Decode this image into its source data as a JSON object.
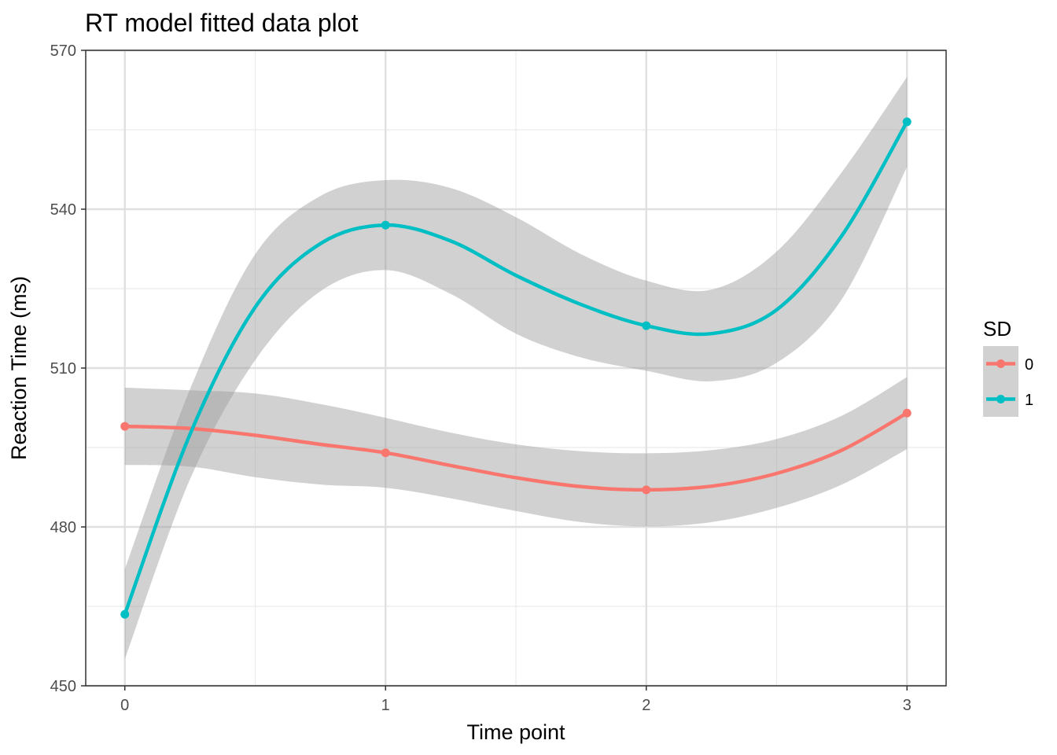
{
  "chart_data": {
    "type": "line",
    "title": "RT model fitted data plot",
    "xlabel": "Time point",
    "ylabel": "Reaction Time (ms)",
    "x": [
      0,
      1,
      2,
      3
    ],
    "x_tick_labels": [
      "0",
      "1",
      "2",
      "3"
    ],
    "xlim": [
      -0.15,
      3.15
    ],
    "ylim": [
      450,
      570
    ],
    "y_ticks": [
      450,
      480,
      510,
      540,
      570
    ],
    "y_tick_labels": [
      "450",
      "480",
      "510",
      "540",
      "570"
    ],
    "grid": true,
    "legend": {
      "title": "SD",
      "position": "right"
    },
    "series": [
      {
        "name": "0",
        "color": "#F8766D",
        "values": [
          499,
          494,
          487,
          501.5
        ],
        "smooth_x": [
          0,
          0.25,
          0.5,
          0.75,
          1,
          1.25,
          1.5,
          1.75,
          2,
          2.25,
          2.5,
          2.75,
          3
        ],
        "smooth": [
          499,
          498.6,
          497.3,
          495.6,
          494,
          491.6,
          489.3,
          487.6,
          487.0,
          487.7,
          490.1,
          494.5,
          501.5
        ],
        "band_upper": [
          506.3,
          505.8,
          505.2,
          503.2,
          500.6,
          497.8,
          495.6,
          494.3,
          493.9,
          494.5,
          496.6,
          501.0,
          508.3
        ],
        "band_lower": [
          491.7,
          491.4,
          489.4,
          488.0,
          487.4,
          485.4,
          483.0,
          480.9,
          480.1,
          480.9,
          483.6,
          488.0,
          494.7
        ]
      },
      {
        "name": "1",
        "color": "#00BFC4",
        "values": [
          463.5,
          537,
          518,
          556.5
        ],
        "smooth_x": [
          0,
          0.25,
          0.5,
          0.75,
          1,
          1.25,
          1.5,
          1.75,
          2,
          2.25,
          2.5,
          2.75,
          3
        ],
        "smooth": [
          463.5,
          497.5,
          521.5,
          533.5,
          537.0,
          534.0,
          527.5,
          522.0,
          518.0,
          516.5,
          521.0,
          535.0,
          556.5
        ],
        "band_upper": [
          472.0,
          506.0,
          531.5,
          542.5,
          545.5,
          544.0,
          538.5,
          531.5,
          526.5,
          524.8,
          532.0,
          547.0,
          565.0
        ],
        "band_lower": [
          455.0,
          489.0,
          511.5,
          524.5,
          528.5,
          524.0,
          516.5,
          512.0,
          509.5,
          507.5,
          511.0,
          523.0,
          548.0
        ]
      }
    ],
    "band_color": "#999999"
  }
}
